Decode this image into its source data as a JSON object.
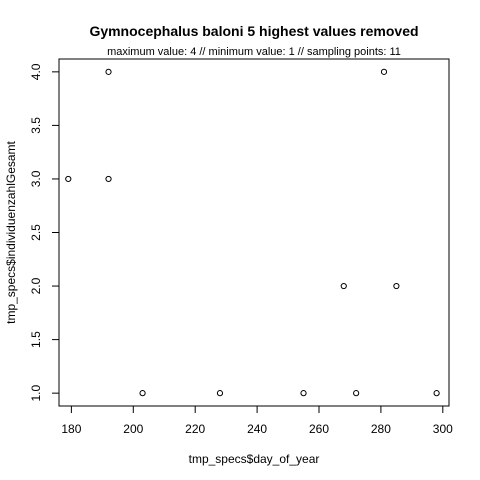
{
  "chart_data": {
    "type": "scatter",
    "title": "Gymnocephalus baloni  5 highest values removed",
    "subtitle": "maximum value: 4  //  minimum value: 1  // sampling points: 11",
    "xlabel": "tmp_specs$day_of_year",
    "ylabel": "tmp_specs$individuenzahlGesamt",
    "xlim": [
      176,
      302
    ],
    "ylim": [
      0.88,
      4.12
    ],
    "x_ticks": [
      180,
      200,
      220,
      240,
      260,
      280,
      300
    ],
    "y_ticks": [
      1.0,
      1.5,
      2.0,
      2.5,
      3.0,
      3.5,
      4.0
    ],
    "y_tick_labels": [
      "1.0",
      "1.5",
      "2.0",
      "2.5",
      "3.0",
      "3.5",
      "4.0"
    ],
    "points": [
      {
        "x": 179,
        "y": 3
      },
      {
        "x": 192,
        "y": 4
      },
      {
        "x": 192,
        "y": 3
      },
      {
        "x": 203,
        "y": 1
      },
      {
        "x": 228,
        "y": 1
      },
      {
        "x": 255,
        "y": 1
      },
      {
        "x": 268,
        "y": 2
      },
      {
        "x": 272,
        "y": 1
      },
      {
        "x": 281,
        "y": 4
      },
      {
        "x": 285,
        "y": 2
      },
      {
        "x": 298,
        "y": 1
      }
    ],
    "marker": "open-circle",
    "grid": false,
    "legend": "none"
  }
}
